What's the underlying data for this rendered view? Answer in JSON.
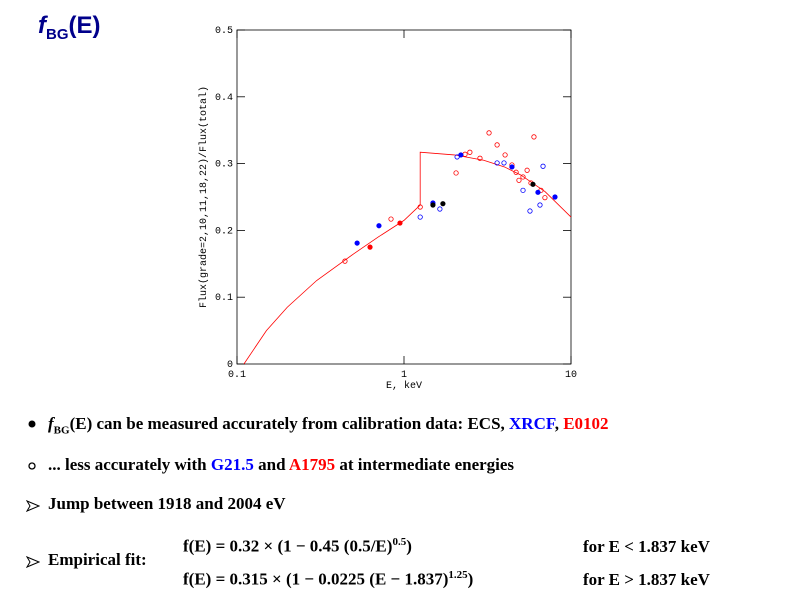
{
  "header": {
    "title": {
      "main": "f",
      "sub": "BG",
      "rest": "(E)"
    }
  },
  "chart_data": {
    "type": "scatter",
    "xlabel": "E, keV",
    "ylabel": "Flux(grade=2,10,11,18,22)/Flux(total)",
    "xscale": "log",
    "xlim": [
      0.1,
      10
    ],
    "xticks": [
      0.1,
      1,
      10
    ],
    "ylim": [
      0,
      0.5
    ],
    "yticks": [
      0,
      0.1,
      0.2,
      0.3,
      0.4,
      0.5
    ],
    "series": [
      {
        "style": "line",
        "color": "#ff0000",
        "x": [
          0.11,
          0.15,
          0.2,
          0.3,
          0.5,
          0.7,
          1.0,
          1.25,
          1.25,
          2,
          3,
          4,
          5,
          7,
          10
        ],
        "values": [
          0.0,
          0.05,
          0.085,
          0.125,
          0.165,
          0.19,
          0.215,
          0.238,
          0.317,
          0.313,
          0.305,
          0.295,
          0.283,
          0.258,
          0.22
        ]
      },
      {
        "style": "open",
        "color": "#ff0000",
        "x": [
          0.443,
          0.836,
          1.25,
          2.05,
          2.32,
          2.48,
          2.85,
          3.23,
          3.61,
          4.03,
          4.43,
          4.69,
          4.88,
          5.16,
          5.46,
          5.76,
          6.0,
          6.61,
          6.98
        ],
        "values": [
          0.154,
          0.217,
          0.235,
          0.286,
          0.314,
          0.317,
          0.308,
          0.346,
          0.328,
          0.313,
          0.298,
          0.287,
          0.275,
          0.28,
          0.29,
          0.271,
          0.34,
          0.26,
          0.249
        ]
      },
      {
        "style": "open",
        "color": "#0000ff",
        "x": [
          1.25,
          1.64,
          2.08,
          3.61,
          3.97,
          5.16,
          5.68,
          6.52,
          6.8
        ],
        "values": [
          0.22,
          0.232,
          0.31,
          0.301,
          0.301,
          0.26,
          0.229,
          0.238,
          0.296
        ]
      },
      {
        "style": "filled",
        "color": "#0000ff",
        "x": [
          0.524,
          0.708,
          1.49,
          2.19,
          4.43,
          6.34,
          8.02
        ],
        "values": [
          0.181,
          0.207,
          0.241,
          0.313,
          0.295,
          0.257,
          0.25
        ]
      },
      {
        "style": "filled",
        "color": "#ff0000",
        "x": [
          0.626,
          0.946
        ],
        "values": [
          0.175,
          0.211
        ]
      },
      {
        "style": "filled",
        "color": "#000000",
        "x": [
          1.49,
          1.71,
          5.92
        ],
        "values": [
          0.238,
          0.24,
          0.269
        ]
      }
    ]
  },
  "bullets": [
    {
      "f": "f",
      "sub": "BG",
      "text": "(E) can be measured accurately from calibration data:",
      "a": " ECS,",
      "b": " XRCF",
      "sep": ",",
      "c": " E0102"
    },
    {
      "text": "... less accurately with ",
      "b": "G21.5",
      "and": " and ",
      "c": "A1795",
      "rest": " at intermediate energies"
    },
    {
      "text": "Jump between 1918 and 2004 eV"
    },
    {
      "text": "Empirical fit:",
      "formulas": [
        {
          "lhs": "f(E) = 0.32 × (1 − 0.45 (0.5/E)",
          "exp": "0.5",
          "close": ")",
          "cond": "for E < 1.837 keV"
        },
        {
          "lhs": "f(E) = 0.315 × (1 − 0.0225 (E − 1.837)",
          "exp": "1.25",
          "close": ")",
          "cond": "for E > 1.837 keV"
        }
      ]
    }
  ]
}
